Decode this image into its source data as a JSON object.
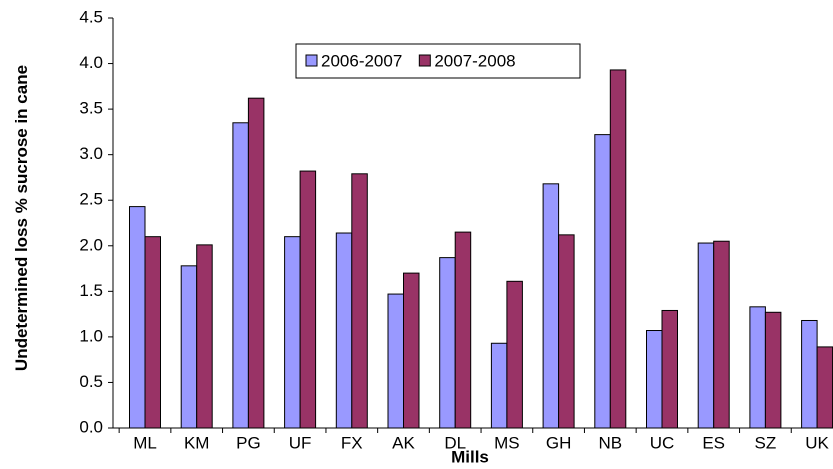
{
  "chart_data": {
    "type": "bar",
    "y_label": "Undetermined loss % sucrose in cane",
    "x_label": "Mills",
    "categories": [
      "ML",
      "KM",
      "PG",
      "UF",
      "FX",
      "AK",
      "DL",
      "MS",
      "GH",
      "NB",
      "UC",
      "ES",
      "SZ",
      "UK"
    ],
    "series": [
      {
        "name": "2006-2007",
        "color": "#9999ff",
        "values": [
          2.43,
          1.78,
          3.35,
          2.1,
          2.14,
          1.47,
          1.87,
          0.93,
          2.68,
          3.22,
          1.07,
          2.03,
          1.33,
          1.18
        ]
      },
      {
        "name": "2007-2008",
        "color": "#993366",
        "values": [
          2.1,
          2.01,
          3.62,
          2.82,
          2.79,
          1.7,
          2.15,
          1.61,
          2.12,
          3.93,
          1.29,
          2.05,
          1.27,
          0.89
        ]
      }
    ],
    "ylim": [
      0,
      4.5
    ],
    "yticks": [
      {
        "value": 0,
        "label": "0.0"
      },
      0.5,
      {
        "value": 1,
        "label": "1.0"
      },
      1.5,
      {
        "value": 2,
        "label": "2.0"
      },
      2.5,
      {
        "value": 3,
        "label": "3.0"
      },
      3.5,
      {
        "value": 4,
        "label": "4.0"
      },
      4.5
    ],
    "legend": "top"
  }
}
